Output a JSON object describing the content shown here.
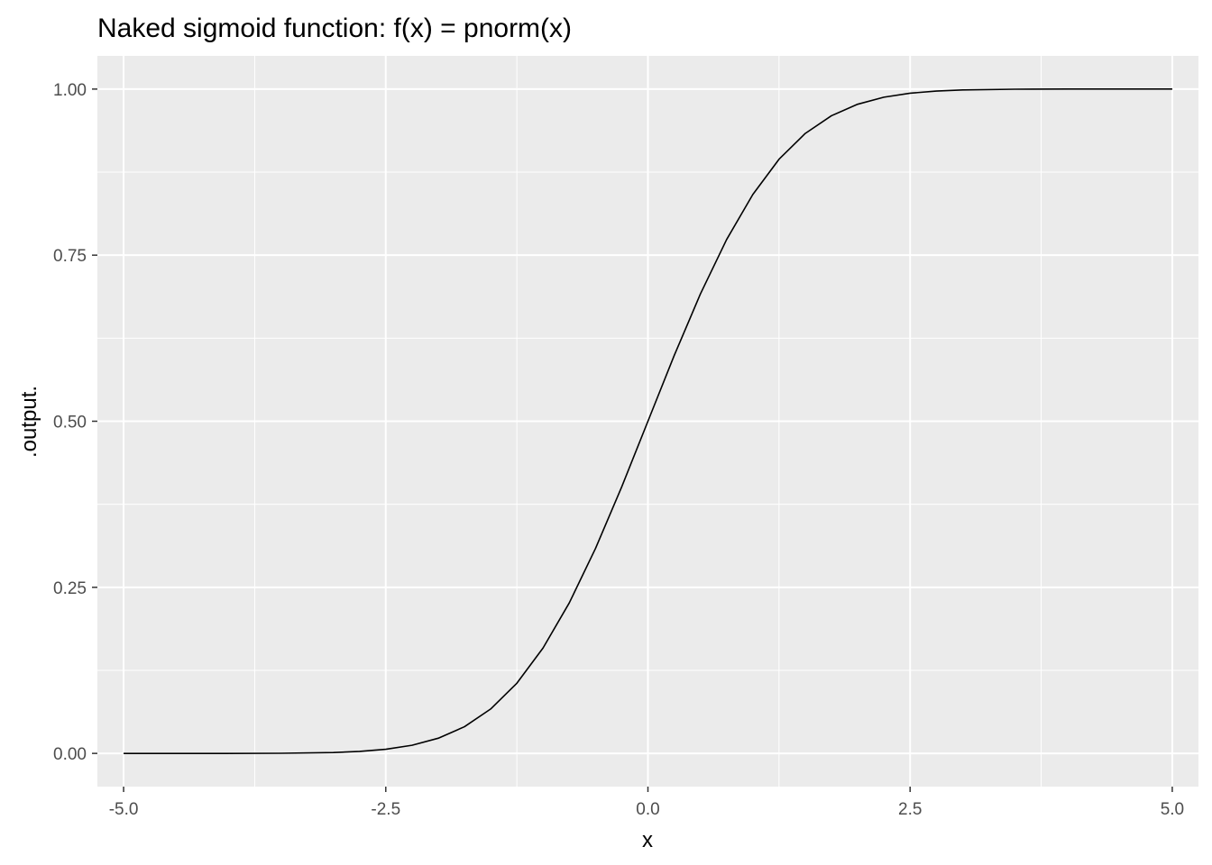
{
  "chart_data": {
    "type": "line",
    "title": "Naked sigmoid function:  f(x) = pnorm(x)",
    "xlabel": "x",
    "ylabel": ".output.",
    "xlim": [
      -5.25,
      5.25
    ],
    "ylim": [
      -0.05,
      1.05
    ],
    "x_ticks": [
      -5.0,
      -2.5,
      0.0,
      2.5,
      5.0
    ],
    "x_tick_labels": [
      "-5.0",
      "-2.5",
      "0.0",
      "2.5",
      "5.0"
    ],
    "y_ticks": [
      0.0,
      0.25,
      0.5,
      0.75,
      1.0
    ],
    "y_tick_labels": [
      "0.00",
      "0.25",
      "0.50",
      "0.75",
      "1.00"
    ],
    "grid": true,
    "series": [
      {
        "color": "#000000",
        "x": [
          -5.0,
          -4.5,
          -4.0,
          -3.5,
          -3.0,
          -2.75,
          -2.5,
          -2.25,
          -2.0,
          -1.75,
          -1.5,
          -1.25,
          -1.0,
          -0.75,
          -0.5,
          -0.25,
          0.0,
          0.25,
          0.5,
          0.75,
          1.0,
          1.25,
          1.5,
          1.75,
          2.0,
          2.25,
          2.5,
          2.75,
          3.0,
          3.5,
          4.0,
          4.5,
          5.0
        ],
        "values": [
          0.0,
          0.0,
          0.0,
          0.0002,
          0.0013,
          0.003,
          0.0062,
          0.0122,
          0.0228,
          0.0401,
          0.0668,
          0.1056,
          0.1587,
          0.2266,
          0.3085,
          0.4013,
          0.5,
          0.5987,
          0.6915,
          0.7734,
          0.8413,
          0.8944,
          0.9332,
          0.9599,
          0.9772,
          0.9878,
          0.9938,
          0.997,
          0.9987,
          0.9998,
          1.0,
          1.0,
          1.0
        ]
      }
    ]
  }
}
